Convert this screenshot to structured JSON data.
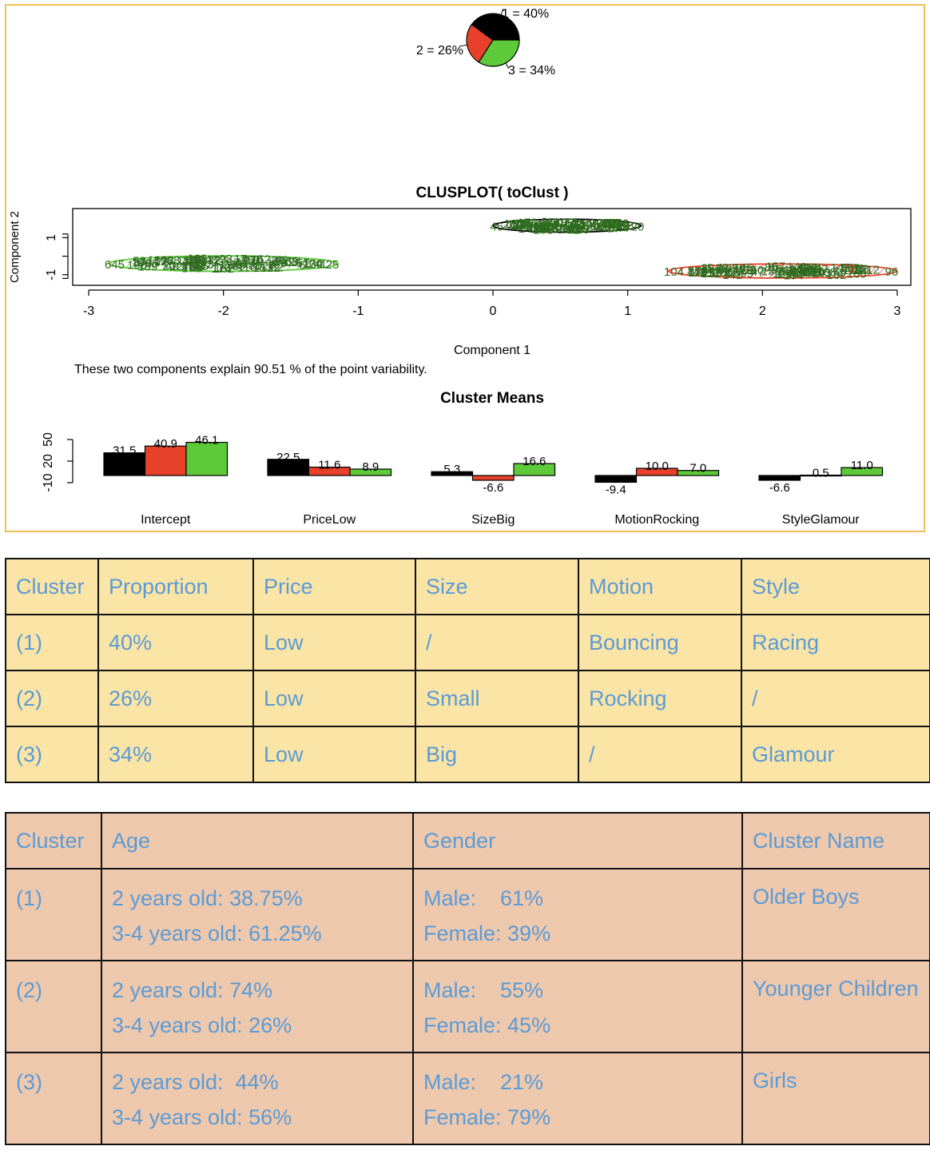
{
  "colors": {
    "cluster1": "#000000",
    "cluster2": "#e8412b",
    "cluster3": "#5dca3a",
    "point": "#2e6b1e",
    "panel_border": "#f2bf57",
    "header_text": "#5b9bd5",
    "table1_bg": "#fae4a6",
    "table2_bg": "#eec8ad"
  },
  "chart_data": [
    {
      "type": "pie",
      "labels": [
        "1 = 40%",
        "2 = 26%",
        "3 = 34%"
      ],
      "values": [
        40,
        26,
        34
      ],
      "colors": [
        "#000000",
        "#e8412b",
        "#5dca3a"
      ]
    },
    {
      "type": "scatter",
      "title": "CLUSPLOT( toClust )",
      "xlabel": "Component 1",
      "ylabel": "Component 2",
      "xlim": [
        -3,
        3
      ],
      "x_ticks": [
        "-3",
        "-2",
        "-1",
        "0",
        "1",
        "2",
        "3"
      ],
      "ylim": [
        -1.4,
        2.4
      ],
      "y_ticks": [
        "1",
        "-1"
      ],
      "note": "These two components explain 90.51 % of the point variability.",
      "clusters": [
        {
          "name": "1",
          "center": [
            0.55,
            1.65
          ],
          "spread": [
            0.55,
            0.35
          ],
          "edge_labels": [
            "46",
            "20",
            "66"
          ]
        },
        {
          "name": "2",
          "center": [
            2.15,
            -0.8
          ],
          "spread": [
            0.85,
            0.38
          ],
          "edge_labels": [
            "104",
            "96",
            "3"
          ]
        },
        {
          "name": "3",
          "center": [
            -2.0,
            -0.4
          ],
          "spread": [
            0.85,
            0.42
          ],
          "edge_labels": [
            "645",
            "25",
            "65"
          ]
        }
      ]
    },
    {
      "type": "bar",
      "title": "Cluster Means",
      "categories": [
        "Intercept",
        "PriceLow",
        "SizeBig",
        "MotionRocking",
        "StyleGlamour"
      ],
      "series": [
        {
          "name": "1",
          "values": [
            31.5,
            22.5,
            5.3,
            -9.4,
            -6.6
          ]
        },
        {
          "name": "2",
          "values": [
            40.9,
            11.6,
            -6.6,
            10.0,
            0.5
          ]
        },
        {
          "name": "3",
          "values": [
            46.1,
            8.9,
            16.6,
            7.0,
            11.0
          ]
        }
      ],
      "value_labels": [
        [
          "31.5",
          "22.5",
          "5.3",
          "-9.4",
          "-6.6"
        ],
        [
          "40.9",
          "11.6",
          "-6.6",
          "10.0",
          "0.5"
        ],
        [
          "46.1",
          "8.9",
          "16.6",
          "7.0",
          "11.0"
        ]
      ],
      "ylim": [
        -10,
        50
      ],
      "y_ticks": [
        "50",
        "20",
        "-10"
      ]
    }
  ],
  "segments_table": {
    "headers": [
      "Cluster",
      "Proportion",
      "Price",
      "Size",
      "Motion",
      "Style"
    ],
    "rows": [
      [
        "(1)",
        "40%",
        "Low",
        "/",
        "Bouncing",
        "Racing"
      ],
      [
        "(2)",
        "26%",
        "Low",
        "Small",
        "Rocking",
        "/"
      ],
      [
        "(3)",
        "34%",
        "Low",
        "Big",
        "/",
        "Glamour"
      ]
    ]
  },
  "demographics_table": {
    "headers": [
      "Cluster",
      "Age",
      "Gender",
      "Cluster Name"
    ],
    "rows": [
      {
        "cluster": "(1)",
        "age": [
          "2 years old: 38.75%",
          "3-4 years old: 61.25%"
        ],
        "gender": [
          "Male:    61%",
          "Female: 39%"
        ],
        "name": "Older Boys"
      },
      {
        "cluster": "(2)",
        "age": [
          "2 years old: 74%",
          "3-4 years old: 26%"
        ],
        "gender": [
          "Male:    55%",
          "Female: 45%"
        ],
        "name": "Younger Children"
      },
      {
        "cluster": "(3)",
        "age": [
          "2 years old:  44%",
          "3-4 years old: 56%"
        ],
        "gender": [
          "Male:    21%",
          "Female: 79%"
        ],
        "name": "Girls"
      }
    ]
  }
}
